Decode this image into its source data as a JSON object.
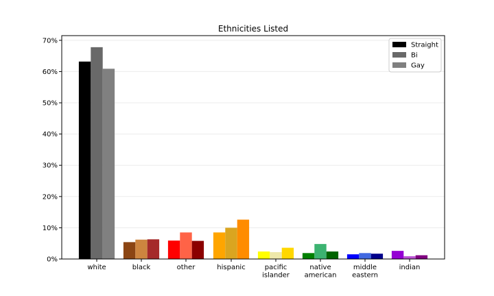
{
  "chart_data": {
    "type": "bar",
    "title": "Ethnicities Listed",
    "xlabel": "",
    "ylabel": "",
    "ylim": [
      0,
      0.715
    ],
    "y_ticks": [
      0,
      0.1,
      0.2,
      0.3,
      0.4,
      0.5,
      0.6,
      0.7
    ],
    "y_tick_labels": [
      "0%",
      "10%",
      "20%",
      "30%",
      "40%",
      "50%",
      "60%",
      "70%"
    ],
    "grid": true,
    "legend_position": "top-right",
    "categories": [
      [
        "white"
      ],
      [
        "black"
      ],
      [
        "other"
      ],
      [
        "hispanic"
      ],
      [
        "pacific",
        "islander"
      ],
      [
        "native",
        "american"
      ],
      [
        "middle",
        "eastern"
      ],
      [
        "indian"
      ]
    ],
    "series": [
      {
        "name": "Straight",
        "values": [
          0.632,
          0.054,
          0.059,
          0.085,
          0.024,
          0.019,
          0.015,
          0.026
        ],
        "legend_color": "#000000",
        "colors": [
          "#000000",
          "#8b4513",
          "#ff0000",
          "#ffa500",
          "#ffff00",
          "#008000",
          "#0000ff",
          "#9400d3"
        ]
      },
      {
        "name": "Bi",
        "values": [
          0.678,
          0.062,
          0.085,
          0.1,
          0.022,
          0.048,
          0.019,
          0.009
        ],
        "legend_color": "#696969",
        "colors": [
          "#696969",
          "#cd853f",
          "#ff6347",
          "#daa520",
          "#eee8aa",
          "#3cb371",
          "#4169e1",
          "#ba55d3"
        ]
      },
      {
        "name": "Gay",
        "values": [
          0.609,
          0.063,
          0.058,
          0.126,
          0.036,
          0.024,
          0.017,
          0.012
        ],
        "legend_color": "#808080",
        "colors": [
          "#808080",
          "#a52a2a",
          "#8b0000",
          "#ff8c00",
          "#ffd700",
          "#006400",
          "#00008b",
          "#800080"
        ]
      }
    ]
  }
}
